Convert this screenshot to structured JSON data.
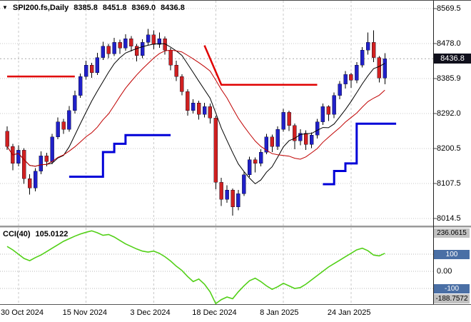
{
  "title_bar": {
    "dropdown_icon": "▼",
    "symbol_timeframe": "SPI200.fs,Daily",
    "open": "8385.8",
    "high": "8451.8",
    "low": "8369.0",
    "close": "8436.8"
  },
  "price_axis": {
    "ticks": [
      "8569.5",
      "8478.0",
      "8385.9",
      "8292.0",
      "8200.5",
      "8107.5",
      "8014.5"
    ],
    "current_price_badge": "8436.8"
  },
  "time_axis": {
    "labels": [
      "30 Oct 2024",
      "15 Nov 2024",
      "3 Dec 2024",
      "18 Dec 2024",
      "8 Jan 2025",
      "24 Jan 2025"
    ]
  },
  "cci_panel": {
    "label": "CCI(40)",
    "value": "105.0122",
    "axis_ticks": [
      {
        "text": "236.0615",
        "style": "gray-badge"
      },
      {
        "text": "100",
        "style": "blue-badge"
      },
      {
        "text": "0.00",
        "style": "plain"
      },
      {
        "text": "-100",
        "style": "blue-badge"
      },
      {
        "text": "-188.7572",
        "style": "gray-badge"
      }
    ]
  },
  "colors": {
    "bull": "#2020c8",
    "bear": "#d02020",
    "wick": "#000000",
    "ma_fast": "#000000",
    "ma_slow": "#c00000",
    "support": "#0000d8",
    "resistance": "#e00000",
    "cci_line": "#52d017",
    "grid": "#c9c9c9",
    "price_badge_bg": "#10101c",
    "level_badge_bg": "#4a6fa5",
    "minmax_badge_bg": "#c2c2c2"
  },
  "chart_data": [
    {
      "type": "candlestick",
      "title": "SPI200.fs Daily",
      "y_range": [
        8014.5,
        8569.5
      ],
      "y_ticks": [
        8569.5,
        8478.0,
        8385.9,
        8292.0,
        8200.5,
        8107.5,
        8014.5
      ],
      "x_ticks": [
        {
          "label": "30 Oct 2024",
          "bar": 2
        },
        {
          "label": "15 Nov 2024",
          "bar": 14
        },
        {
          "label": "3 Dec 2024",
          "bar": 26
        },
        {
          "label": "18 Dec 2024",
          "bar": 37
        },
        {
          "label": "8 Jan 2025",
          "bar": 49
        },
        {
          "label": "24 Jan 2025",
          "bar": 61
        }
      ],
      "open": [
        8245,
        8205,
        8160,
        8195,
        8120,
        8095,
        8140,
        8180,
        8165,
        8230,
        8270,
        8250,
        8300,
        8340,
        8390,
        8420,
        8400,
        8440,
        8470,
        8450,
        8480,
        8465,
        8490,
        8470,
        8445,
        8480,
        8500,
        8475,
        8490,
        8460,
        8420,
        8390,
        8350,
        8300,
        8320,
        8290,
        8310,
        8280,
        8110,
        8065,
        8090,
        8045,
        8080,
        8130,
        8170,
        8160,
        8190,
        8230,
        8205,
        8250,
        8295,
        8260,
        8220,
        8240,
        8210,
        8235,
        8270,
        8310,
        8290,
        8340,
        8370,
        8395,
        8380,
        8420,
        8460,
        8480,
        8440,
        8385.8
      ],
      "high": [
        8258,
        8212,
        8208,
        8200,
        8132,
        8148,
        8192,
        8188,
        8238,
        8282,
        8278,
        8312,
        8352,
        8398,
        8432,
        8426,
        8452,
        8482,
        8476,
        8492,
        8487,
        8502,
        8497,
        8476,
        8488,
        8516,
        8512,
        8506,
        8496,
        8466,
        8432,
        8396,
        8356,
        8330,
        8326,
        8320,
        8318,
        8286,
        8122,
        8102,
        8094,
        8090,
        8138,
        8178,
        8176,
        8198,
        8238,
        8236,
        8258,
        8304,
        8300,
        8266,
        8250,
        8248,
        8242,
        8278,
        8318,
        8314,
        8348,
        8378,
        8404,
        8400,
        8428,
        8468,
        8506,
        8512,
        8444,
        8451.8
      ],
      "low": [
        8196,
        8142,
        8152,
        8106,
        8078,
        8086,
        8132,
        8152,
        8158,
        8224,
        8238,
        8244,
        8292,
        8334,
        8382,
        8386,
        8394,
        8434,
        8438,
        8444,
        8450,
        8458,
        8456,
        8430,
        8438,
        8472,
        8462,
        8466,
        8448,
        8406,
        8378,
        8340,
        8286,
        8292,
        8276,
        8282,
        8266,
        8092,
        8048,
        8056,
        8022,
        8036,
        8074,
        8124,
        8136,
        8152,
        8184,
        8190,
        8196,
        8244,
        8246,
        8198,
        8208,
        8196,
        8200,
        8226,
        8262,
        8272,
        8280,
        8330,
        8358,
        8360,
        8372,
        8414,
        8448,
        8428,
        8374,
        8369.0
      ],
      "close": [
        8205,
        8160,
        8195,
        8120,
        8095,
        8140,
        8180,
        8165,
        8230,
        8270,
        8250,
        8300,
        8340,
        8390,
        8420,
        8400,
        8440,
        8470,
        8450,
        8480,
        8465,
        8490,
        8470,
        8445,
        8480,
        8500,
        8475,
        8490,
        8460,
        8420,
        8390,
        8350,
        8300,
        8320,
        8290,
        8310,
        8280,
        8110,
        8065,
        8090,
        8045,
        8080,
        8130,
        8170,
        8160,
        8190,
        8230,
        8205,
        8250,
        8295,
        8260,
        8220,
        8240,
        8210,
        8235,
        8270,
        8310,
        8290,
        8340,
        8370,
        8395,
        8380,
        8420,
        8460,
        8480,
        8440,
        8385.8,
        8436.8
      ],
      "current_bar_ohlc": {
        "open": 8385.8,
        "high": 8451.8,
        "low": 8369.0,
        "close": 8436.8
      },
      "current_price": 8436.8,
      "overlays": {
        "ma_fast": {
          "kind": "sma",
          "period": 8
        },
        "ma_slow": {
          "kind": "sma",
          "period": 16
        },
        "support_steps": [
          [
            [
              11,
              8125
            ],
            [
              17,
              8125
            ],
            [
              17,
              8190
            ],
            [
              19,
              8190
            ],
            [
              19,
              8212
            ],
            [
              21,
              8212
            ],
            [
              21,
              8235
            ],
            [
              29,
              8235
            ]
          ],
          [
            [
              56,
              8105
            ],
            [
              58,
              8105
            ],
            [
              58,
              8140
            ],
            [
              60,
              8140
            ],
            [
              60,
              8160
            ],
            [
              62,
              8160
            ],
            [
              62,
              8265
            ],
            [
              69,
              8265
            ]
          ]
        ],
        "resistance_lines": [
          [
            [
              0,
              8390
            ],
            [
              12,
              8390
            ]
          ],
          [
            [
              35,
              8472
            ],
            [
              38,
              8368
            ],
            [
              55,
              8368
            ]
          ]
        ]
      }
    },
    {
      "type": "line",
      "title": "CCI(40)",
      "current_value": 105.0122,
      "levels": [
        100,
        -100
      ],
      "max": 236.0615,
      "min": -188.7572,
      "values": [
        145,
        125,
        100,
        75,
        62,
        80,
        95,
        115,
        135,
        155,
        175,
        190,
        205,
        218,
        228,
        236.0615,
        225,
        210,
        215,
        200,
        180,
        160,
        145,
        130,
        118,
        112,
        118,
        105,
        85,
        60,
        30,
        5,
        -30,
        -60,
        -45,
        -75,
        -120,
        -188.7572,
        -165,
        -150,
        -160,
        -120,
        -85,
        -55,
        -40,
        -60,
        -85,
        -105,
        -90,
        -70,
        -85,
        -100,
        -95,
        -75,
        -50,
        -25,
        0,
        25,
        45,
        65,
        85,
        105,
        125,
        135,
        120,
        95,
        90,
        105.0122
      ]
    }
  ]
}
